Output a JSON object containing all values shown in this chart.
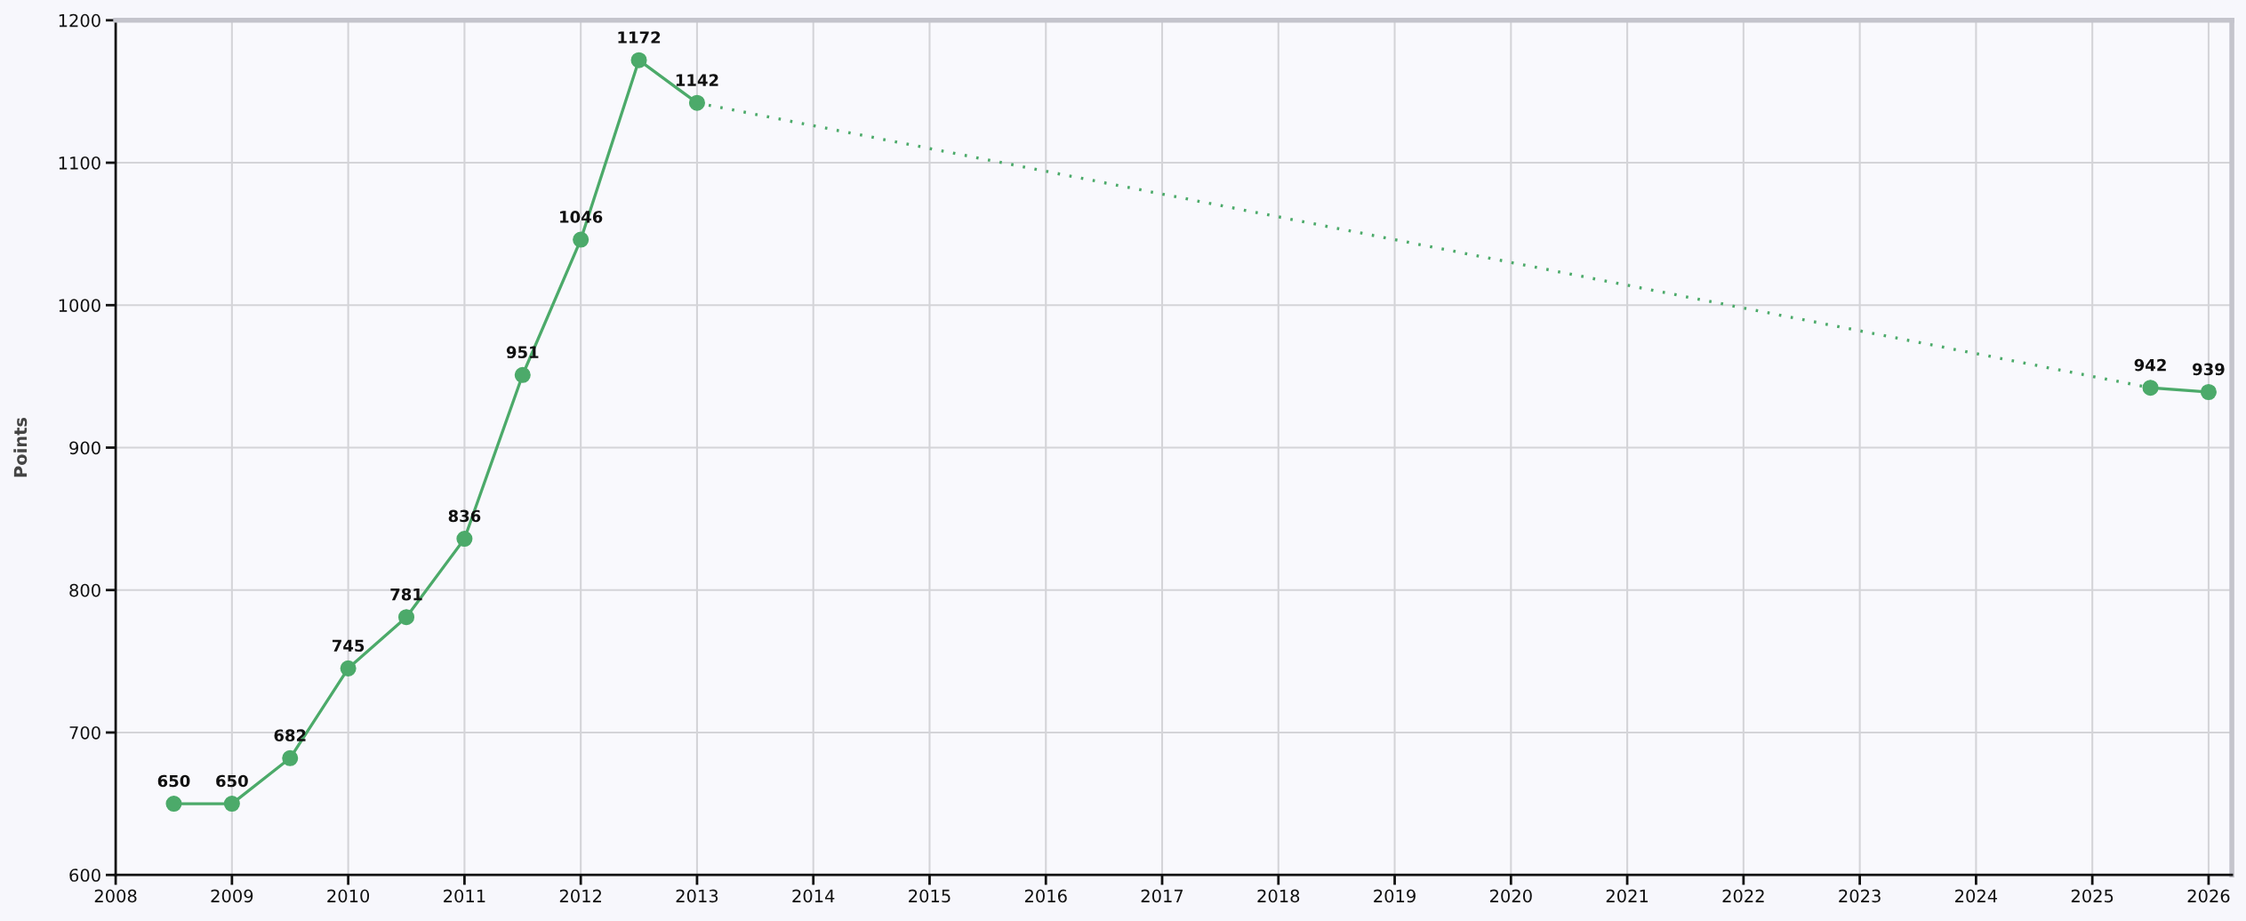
{
  "chart_data": {
    "type": "line",
    "ylabel": "Points",
    "xlim": [
      2008,
      2026.2
    ],
    "xticks": [
      2008,
      2009,
      2010,
      2011,
      2012,
      2013,
      2014,
      2015,
      2016,
      2017,
      2018,
      2019,
      2020,
      2021,
      2022,
      2023,
      2024,
      2025,
      2026
    ],
    "ylim": [
      600,
      1200
    ],
    "yticks": [
      600,
      700,
      800,
      900,
      1000,
      1100,
      1200
    ],
    "grid": true,
    "series": [
      {
        "color": "#4caa6a",
        "marker": "circle",
        "line_style": "solid",
        "x": [
          2008.5,
          2009,
          2009.5,
          2010,
          2010.5,
          2011,
          2011.5,
          2012,
          2012.5,
          2013
        ],
        "values": [
          650,
          650,
          682,
          745,
          781,
          836,
          951,
          1046,
          1172,
          1142
        ],
        "value_labels": [
          "650",
          "650",
          "682",
          "745",
          "781",
          "836",
          "951",
          "1046",
          "1172",
          "1142"
        ]
      },
      {
        "color": "#4caa6a",
        "line_style": "dotted",
        "x": [
          2013,
          2025.5
        ],
        "values": [
          1142,
          942
        ],
        "value_labels": [
          null,
          null
        ]
      },
      {
        "color": "#4caa6a",
        "marker": "circle",
        "line_style": "solid",
        "x": [
          2025.5,
          2026
        ],
        "values": [
          942,
          939
        ],
        "value_labels": [
          "942",
          "939"
        ]
      }
    ]
  }
}
